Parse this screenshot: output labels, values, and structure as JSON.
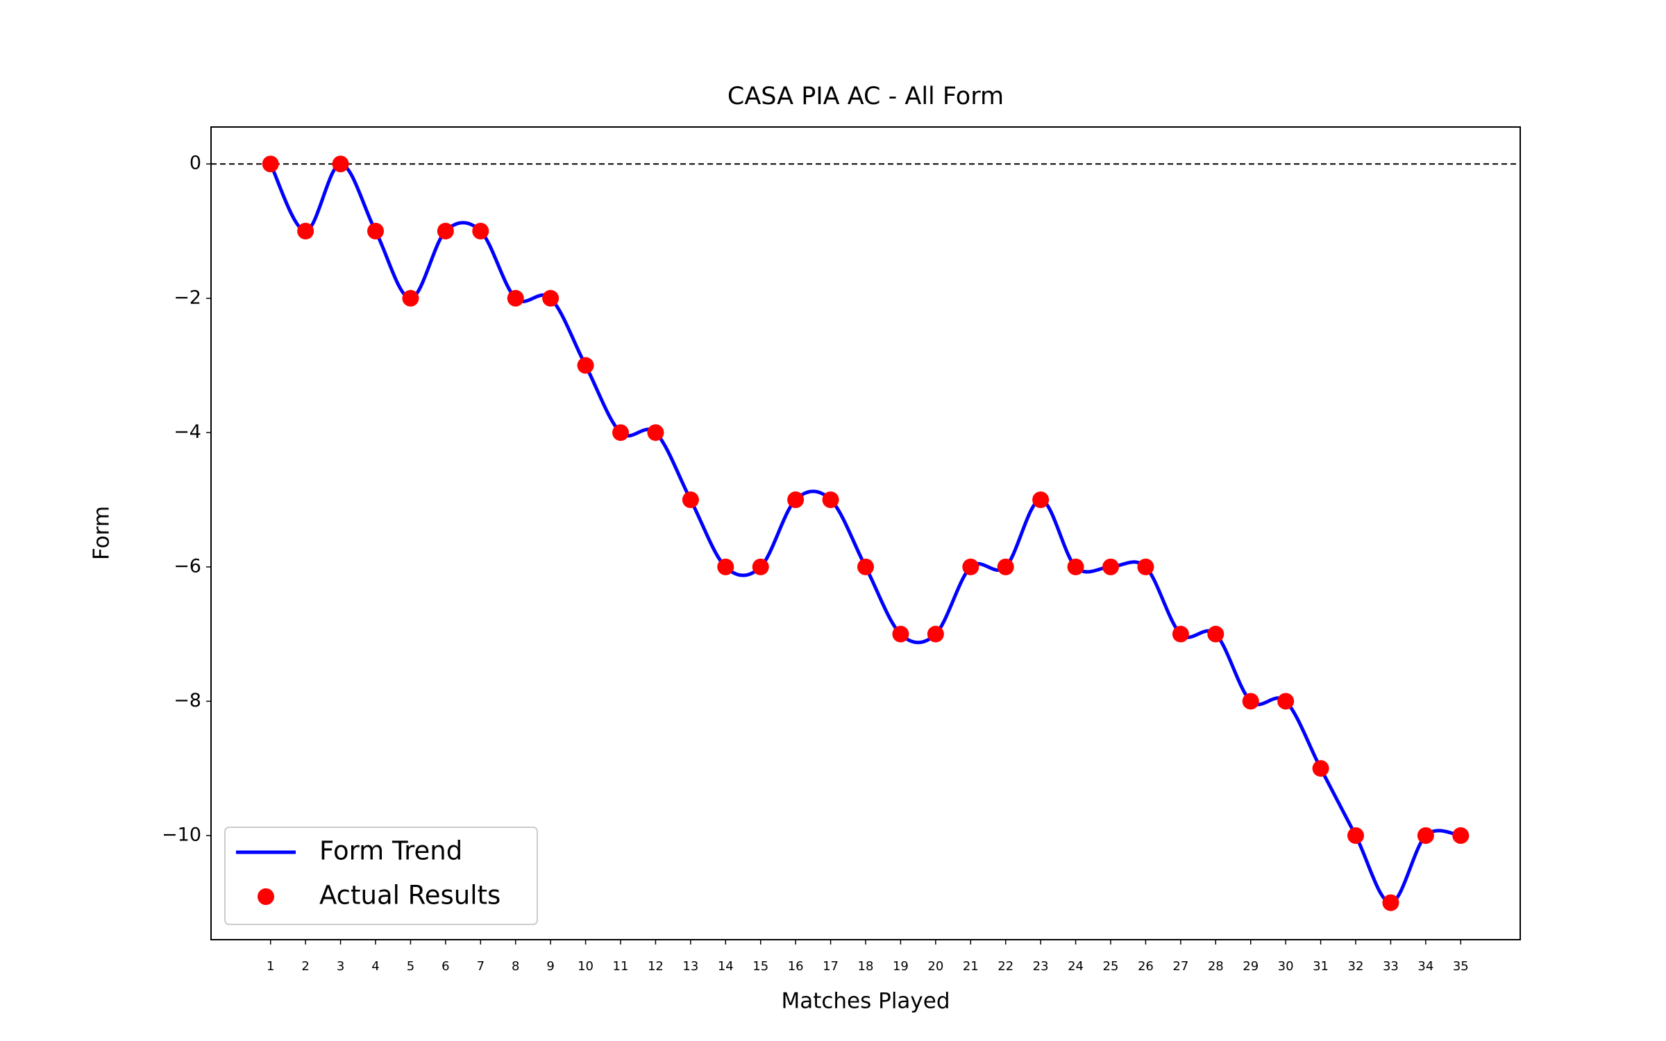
{
  "chart_data": {
    "type": "line_scatter",
    "title": "CASA PIA AC - All Form",
    "xlabel": "Matches Played",
    "ylabel": "Form",
    "x": [
      1,
      2,
      3,
      4,
      5,
      6,
      7,
      8,
      9,
      10,
      11,
      12,
      13,
      14,
      15,
      16,
      17,
      18,
      19,
      20,
      21,
      22,
      23,
      24,
      25,
      26,
      27,
      28,
      29,
      30,
      31,
      32,
      33,
      34,
      35
    ],
    "series": [
      {
        "name": "Form Trend",
        "color": "#0000ff",
        "kind": "smooth_line",
        "values": [
          0,
          -1,
          0,
          -1,
          -2,
          -1,
          -1,
          -2,
          -2,
          -3,
          -4,
          -4,
          -5,
          -6,
          -6,
          -5,
          -5,
          -6,
          -7,
          -7,
          -6,
          -6,
          -5,
          -6,
          -6,
          -6,
          -7,
          -7,
          -8,
          -8,
          -9,
          -10,
          -11,
          -10,
          -10
        ]
      },
      {
        "name": "Actual Results",
        "color": "#ff0000",
        "kind": "scatter",
        "values": [
          0,
          -1,
          0,
          -1,
          -2,
          -1,
          -1,
          -2,
          -2,
          -3,
          -4,
          -4,
          -5,
          -6,
          -6,
          -5,
          -5,
          -6,
          -7,
          -7,
          -6,
          -6,
          -5,
          -6,
          -6,
          -6,
          -7,
          -7,
          -8,
          -8,
          -9,
          -10,
          -11,
          -10,
          -10
        ]
      }
    ],
    "xlim": [
      -0.7,
      36.7
    ],
    "ylim": [
      -11.55,
      0.55
    ],
    "xticks": [
      1,
      2,
      3,
      4,
      5,
      6,
      7,
      8,
      9,
      10,
      11,
      12,
      13,
      14,
      15,
      16,
      17,
      18,
      19,
      20,
      21,
      22,
      23,
      24,
      25,
      26,
      27,
      28,
      29,
      30,
      31,
      32,
      33,
      34,
      35
    ],
    "yticks": [
      {
        "value": -10,
        "label": "−10"
      },
      {
        "value": -8,
        "label": "−8"
      },
      {
        "value": -6,
        "label": "−6"
      },
      {
        "value": -4,
        "label": "−4"
      },
      {
        "value": -2,
        "label": "−2"
      },
      0
    ],
    "reference_line": {
      "y": 0,
      "color": "#000000",
      "style": "dashed"
    },
    "legend": "lower left",
    "grid": false
  }
}
